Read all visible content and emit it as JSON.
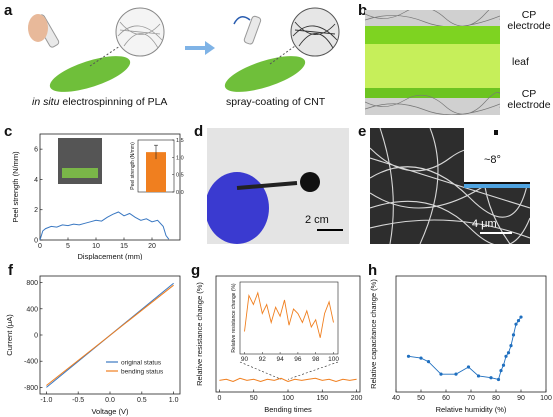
{
  "panels": {
    "a": {
      "label": "a",
      "caption_left_italic": "in situ",
      "caption_left_rest": " electrospinning of PLA",
      "caption_right": "spray-coating of CNT"
    },
    "b": {
      "label": "b",
      "top_label": "CP\nelectrode",
      "middle_label": "leaf",
      "bottom_label": "CP\nelectrode"
    },
    "c": {
      "label": "c",
      "chart_data": {
        "type": "line",
        "title": "",
        "xlabel": "Displacement (mm)",
        "ylabel": "Peel strength (N/mm)",
        "xlim": [
          0,
          25
        ],
        "ylim": [
          0,
          7
        ],
        "xticks": [
          "0",
          "5",
          "10",
          "15",
          "20"
        ],
        "yticks": [
          "0",
          "2",
          "4",
          "6"
        ],
        "series": [
          {
            "color": "#3a78c2",
            "x": [
              0,
              0.5,
              1,
              2,
              3,
              4,
              5,
              6,
              7,
              8,
              9,
              10,
              11,
              12,
              13,
              14,
              15,
              16,
              17,
              18,
              19,
              20,
              21,
              22,
              22.5,
              23
            ],
            "y": [
              0.0,
              0.6,
              0.75,
              0.9,
              0.85,
              1.0,
              0.95,
              1.05,
              1.0,
              1.1,
              1.2,
              1.3,
              1.25,
              1.5,
              1.7,
              1.85,
              1.6,
              1.75,
              1.5,
              1.3,
              1.4,
              1.2,
              1.3,
              0.9,
              0.3,
              0.05
            ]
          }
        ],
        "inset": {
          "type": "bar",
          "ylabel": "Peel strength (N/mm)",
          "ylim": [
            0,
            1.5
          ],
          "yticks": [
            "0.0",
            "0.5",
            "1.0",
            "1.5"
          ],
          "value": 1.15,
          "error": 0.2,
          "color": "#f07f1f"
        }
      }
    },
    "d": {
      "label": "d",
      "scale_bar": "2 cm"
    },
    "e": {
      "label": "e",
      "scale_bar": "4 μm",
      "angle_text": "~8°"
    },
    "f": {
      "label": "f",
      "chart_data": {
        "type": "line",
        "xlabel": "Voltage (V)",
        "ylabel": "Current (μA)",
        "xlim": [
          -1.1,
          1.1
        ],
        "ylim": [
          -900,
          900
        ],
        "xticks": [
          "-1.0",
          "-0.5",
          "0.0",
          "0.5",
          "1.0"
        ],
        "yticks": [
          "-800",
          "-400",
          "0",
          "400",
          "800"
        ],
        "series": [
          {
            "name": "original status",
            "color": "#3a78c2",
            "x": [
              -1.0,
              1.0
            ],
            "y": [
              -800,
              790
            ]
          },
          {
            "name": "bending status",
            "color": "#f07f1f",
            "x": [
              -1.0,
              1.0
            ],
            "y": [
              -770,
              760
            ]
          }
        ]
      }
    },
    "g": {
      "label": "g",
      "chart_data": {
        "type": "line",
        "xlabel": "Bending times",
        "ylabel": "Relative resistance change (%)",
        "xlim": [
          -5,
          205
        ],
        "ylim": [
          -10,
          100
        ],
        "xticks": [
          "0",
          "50",
          "100",
          "150",
          "200"
        ],
        "series": [
          {
            "color": "#f07f1f",
            "x": [
              0,
              10,
              20,
              30,
              40,
              50,
              60,
              70,
              80,
              90,
              100,
              110,
              120,
              130,
              140,
              150,
              160,
              170,
              180,
              190,
              200
            ],
            "y": [
              1,
              2,
              0,
              3,
              1,
              2,
              0,
              2,
              1,
              3,
              0,
              2,
              1,
              2,
              3,
              1,
              2,
              0,
              2,
              1,
              2
            ]
          }
        ],
        "inset": {
          "xlabel": "",
          "ylabel": "Relative resistance change (%)",
          "xticks": [
            "90",
            "92",
            "94",
            "96",
            "98",
            "100"
          ],
          "xlim": [
            89.5,
            100.5
          ],
          "ylim": [
            -4,
            4
          ],
          "x": [
            90,
            90.5,
            91,
            91.5,
            92,
            92.5,
            93,
            93.5,
            94,
            94.5,
            95,
            95.5,
            96,
            96.5,
            97,
            97.5,
            98,
            98.5,
            99,
            99.5,
            100
          ],
          "y": [
            -1.5,
            2.5,
            1.5,
            2.8,
            0.5,
            1.5,
            -0.5,
            1.2,
            0.2,
            2.0,
            -0.8,
            1.0,
            0.5,
            -0.5,
            0.8,
            -1.0,
            -0.2,
            -2.2,
            0.5,
            1.8,
            -0.5
          ]
        }
      }
    },
    "h": {
      "label": "h",
      "chart_data": {
        "type": "scatter",
        "xlabel": "Relative humidity (%)",
        "ylabel": "Relative capacitance change (%)",
        "xlim": [
          40,
          100
        ],
        "ylim": [
          -20,
          45
        ],
        "xticks": [
          "40",
          "50",
          "60",
          "70",
          "80",
          "90",
          "100"
        ],
        "series": [
          {
            "color": "#1f6fbf",
            "x": [
              45,
              50,
              53,
              58,
              64,
              69,
              73,
              78,
              81,
              82,
              83,
              84,
              85,
              86,
              87,
              88,
              89,
              90
            ],
            "y": [
              0,
              -1,
              -3,
              -10,
              -10,
              -6,
              -11,
              -12,
              -13,
              -8,
              -5,
              0,
              2,
              6,
              12,
              18,
              20,
              22
            ]
          }
        ]
      }
    }
  }
}
